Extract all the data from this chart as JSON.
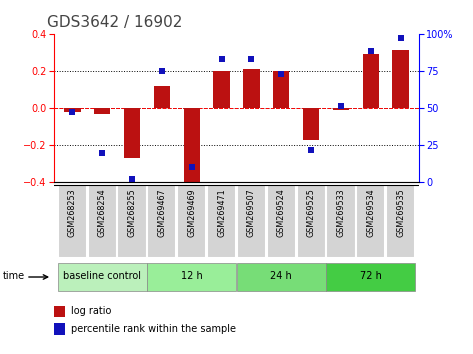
{
  "title": "GDS3642 / 16902",
  "samples": [
    "GSM268253",
    "GSM268254",
    "GSM268255",
    "GSM269467",
    "GSM269469",
    "GSM269471",
    "GSM269507",
    "GSM269524",
    "GSM269525",
    "GSM269533",
    "GSM269534",
    "GSM269535"
  ],
  "log_ratios": [
    -0.02,
    -0.03,
    -0.27,
    0.12,
    -0.41,
    0.2,
    0.21,
    0.2,
    -0.17,
    -0.01,
    0.29,
    0.31
  ],
  "percentile_ranks": [
    47,
    20,
    2,
    75,
    10,
    83,
    83,
    73,
    22,
    51,
    88,
    97
  ],
  "groups": [
    {
      "label": "baseline control",
      "start": 0,
      "end": 3,
      "color": "#bbf0bb"
    },
    {
      "label": "12 h",
      "start": 3,
      "end": 6,
      "color": "#99ee99"
    },
    {
      "label": "24 h",
      "start": 6,
      "end": 9,
      "color": "#77dd77"
    },
    {
      "label": "72 h",
      "start": 9,
      "end": 12,
      "color": "#44cc44"
    }
  ],
  "bar_color": "#bb1111",
  "dot_color": "#1111bb",
  "ylim_left": [
    -0.4,
    0.4
  ],
  "ylim_right": [
    0,
    100
  ],
  "yticks_left": [
    -0.4,
    -0.2,
    0.0,
    0.2,
    0.4
  ],
  "yticks_right": [
    0,
    25,
    50,
    75,
    100
  ],
  "background_color": "#ffffff",
  "title_fontsize": 11,
  "axis_fontsize": 7,
  "legend_bar_label": "log ratio",
  "legend_dot_label": "percentile rank within the sample",
  "cell_bg": "#d4d4d4",
  "cell_border": "#ffffff"
}
